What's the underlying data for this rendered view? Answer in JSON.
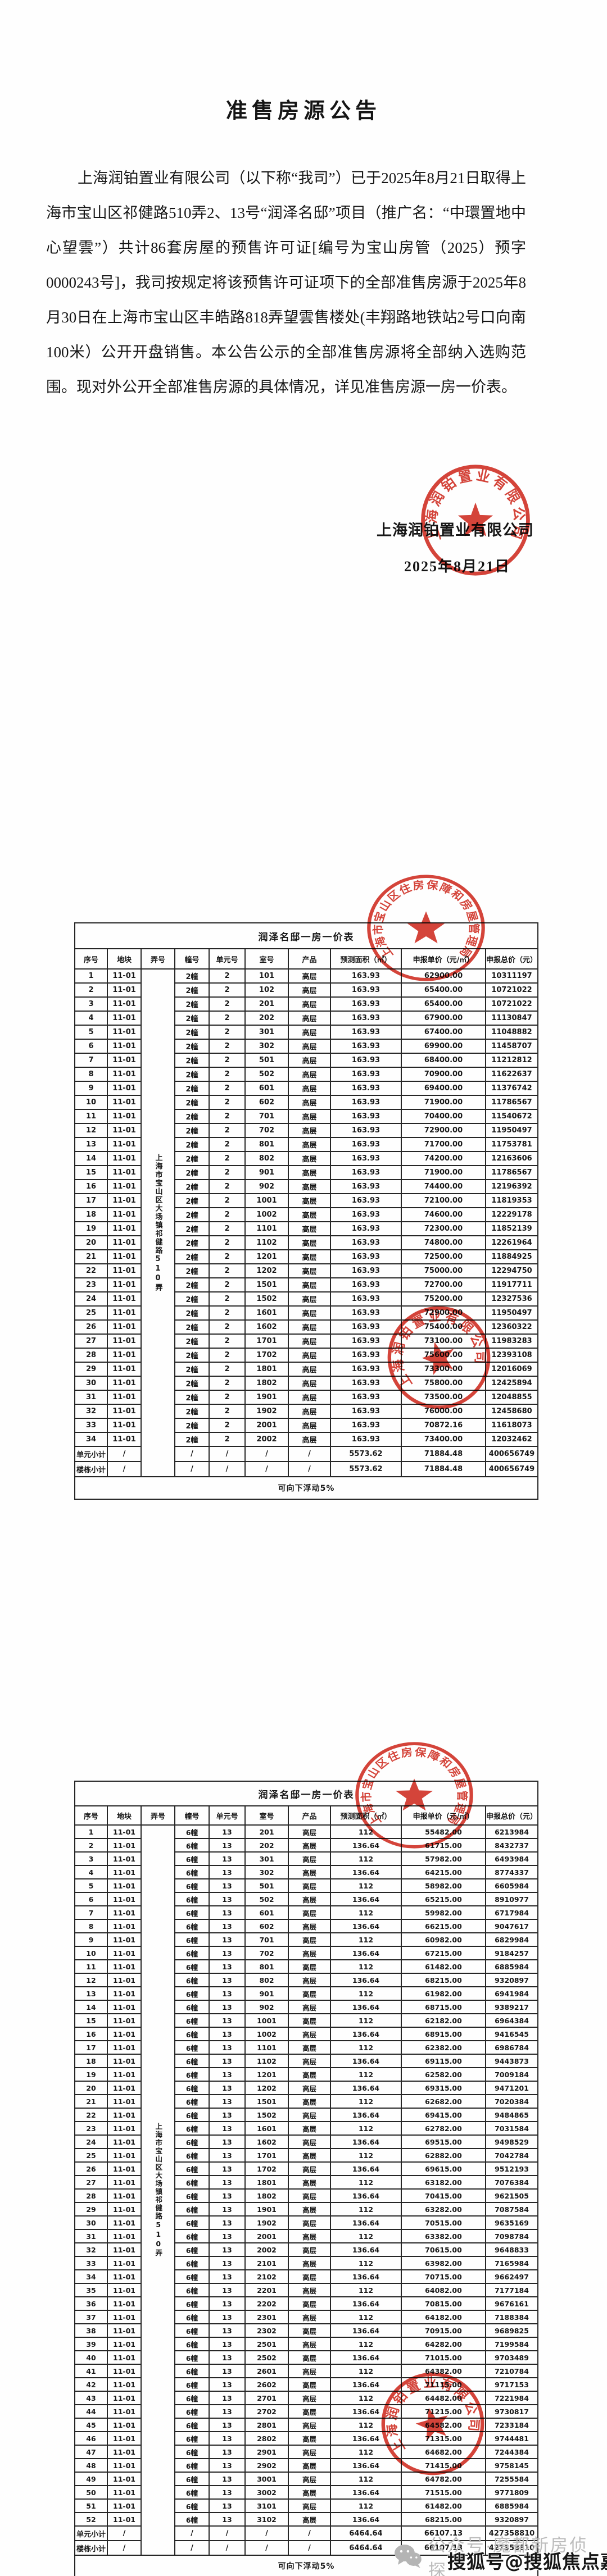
{
  "doc": {
    "title": "准售房源公告",
    "paragraph": "上海润铂置业有限公司（以下称“我司”）已于2025年8月21日取得上海市宝山区祁健路510弄2、13号“润泽名邸”项目（推广名：“中環置地中心望雲”）共计86套房屋的预售许可证[编号为宝山房管（2025）预字0000243号]，我司按规定将该预售许可证项下的全部准售房源于2025年8月30日在上海市宝山区丰皓路818弄望雲售楼处(丰翔路地铁站2号口向南100米）公开开盘销售。本公告公示的全部准售房源将全部纳入选购范围。现对外公开全部准售房源的具体情况，详见准售房源一房一价表。",
    "signature_company": "上海润铂置业有限公司",
    "signature_date": "2025年8月21日"
  },
  "stamps": {
    "company": "上海润铂置业有限公司",
    "authority": "上海市宝山区住房保障和房屋管理局"
  },
  "watermark": {
    "wechat": "公众号·魔都新房侦探",
    "sohu": "搜狐号@搜狐焦点嘉峪关站"
  },
  "table1": {
    "title": "润泽名邸一房一价表",
    "headers": [
      "序号",
      "地块",
      "弄号",
      "幢号",
      "单元号",
      "室号",
      "产品",
      "预测面积（㎡）",
      "申报单价（元/㎡）",
      "申报总价（元）"
    ],
    "lane_label": "上海市宝山区大场镇祁健路510弄",
    "rows": [
      [
        "1",
        "11-01",
        "2幢",
        "2",
        "101",
        "高层",
        "163.93",
        "62900.00",
        "10311197"
      ],
      [
        "2",
        "11-01",
        "2幢",
        "2",
        "102",
        "高层",
        "163.93",
        "65400.00",
        "10721022"
      ],
      [
        "3",
        "11-01",
        "2幢",
        "2",
        "201",
        "高层",
        "163.93",
        "65400.00",
        "10721022"
      ],
      [
        "4",
        "11-01",
        "2幢",
        "2",
        "202",
        "高层",
        "163.93",
        "67900.00",
        "11130847"
      ],
      [
        "5",
        "11-01",
        "2幢",
        "2",
        "301",
        "高层",
        "163.93",
        "67400.00",
        "11048882"
      ],
      [
        "6",
        "11-01",
        "2幢",
        "2",
        "302",
        "高层",
        "163.93",
        "69900.00",
        "11458707"
      ],
      [
        "7",
        "11-01",
        "2幢",
        "2",
        "501",
        "高层",
        "163.93",
        "68400.00",
        "11212812"
      ],
      [
        "8",
        "11-01",
        "2幢",
        "2",
        "502",
        "高层",
        "163.93",
        "70900.00",
        "11622637"
      ],
      [
        "9",
        "11-01",
        "2幢",
        "2",
        "601",
        "高层",
        "163.93",
        "69400.00",
        "11376742"
      ],
      [
        "10",
        "11-01",
        "2幢",
        "2",
        "602",
        "高层",
        "163.93",
        "71900.00",
        "11786567"
      ],
      [
        "11",
        "11-01",
        "2幢",
        "2",
        "701",
        "高层",
        "163.93",
        "70400.00",
        "11540672"
      ],
      [
        "12",
        "11-01",
        "2幢",
        "2",
        "702",
        "高层",
        "163.93",
        "72900.00",
        "11950497"
      ],
      [
        "13",
        "11-01",
        "2幢",
        "2",
        "801",
        "高层",
        "163.93",
        "71700.00",
        "11753781"
      ],
      [
        "14",
        "11-01",
        "2幢",
        "2",
        "802",
        "高层",
        "163.93",
        "74200.00",
        "12163606"
      ],
      [
        "15",
        "11-01",
        "2幢",
        "2",
        "901",
        "高层",
        "163.93",
        "71900.00",
        "11786567"
      ],
      [
        "16",
        "11-01",
        "2幢",
        "2",
        "902",
        "高层",
        "163.93",
        "74400.00",
        "12196392"
      ],
      [
        "17",
        "11-01",
        "2幢",
        "2",
        "1001",
        "高层",
        "163.93",
        "72100.00",
        "11819353"
      ],
      [
        "18",
        "11-01",
        "2幢",
        "2",
        "1002",
        "高层",
        "163.93",
        "74600.00",
        "12229178"
      ],
      [
        "19",
        "11-01",
        "2幢",
        "2",
        "1101",
        "高层",
        "163.93",
        "72300.00",
        "11852139"
      ],
      [
        "20",
        "11-01",
        "2幢",
        "2",
        "1102",
        "高层",
        "163.93",
        "74800.00",
        "12261964"
      ],
      [
        "21",
        "11-01",
        "2幢",
        "2",
        "1201",
        "高层",
        "163.93",
        "72500.00",
        "11884925"
      ],
      [
        "22",
        "11-01",
        "2幢",
        "2",
        "1202",
        "高层",
        "163.93",
        "75000.00",
        "12294750"
      ],
      [
        "23",
        "11-01",
        "2幢",
        "2",
        "1501",
        "高层",
        "163.93",
        "72700.00",
        "11917711"
      ],
      [
        "24",
        "11-01",
        "2幢",
        "2",
        "1502",
        "高层",
        "163.93",
        "75200.00",
        "12327536"
      ],
      [
        "25",
        "11-01",
        "2幢",
        "2",
        "1601",
        "高层",
        "163.93",
        "72900.00",
        "11950497"
      ],
      [
        "26",
        "11-01",
        "2幢",
        "2",
        "1602",
        "高层",
        "163.93",
        "75400.00",
        "12360322"
      ],
      [
        "27",
        "11-01",
        "2幢",
        "2",
        "1701",
        "高层",
        "163.93",
        "73100.00",
        "11983283"
      ],
      [
        "28",
        "11-01",
        "2幢",
        "2",
        "1702",
        "高层",
        "163.93",
        "75600.00",
        "12393108"
      ],
      [
        "29",
        "11-01",
        "2幢",
        "2",
        "1801",
        "高层",
        "163.93",
        "73300.00",
        "12016069"
      ],
      [
        "30",
        "11-01",
        "2幢",
        "2",
        "1802",
        "高层",
        "163.93",
        "75800.00",
        "12425894"
      ],
      [
        "31",
        "11-01",
        "2幢",
        "2",
        "1901",
        "高层",
        "163.93",
        "73500.00",
        "12048855"
      ],
      [
        "32",
        "11-01",
        "2幢",
        "2",
        "1902",
        "高层",
        "163.93",
        "76000.00",
        "12458680"
      ],
      [
        "33",
        "11-01",
        "2幢",
        "2",
        "2001",
        "高层",
        "163.93",
        "70872.16",
        "11618073"
      ],
      [
        "34",
        "11-01",
        "2幢",
        "2",
        "2002",
        "高层",
        "163.93",
        "73400.00",
        "12032462"
      ]
    ],
    "subtotals": [
      {
        "label": "单元小计",
        "cells": [
          "/",
          "/",
          "/",
          "/",
          "/",
          "5573.62",
          "71884.48",
          "400656749"
        ]
      },
      {
        "label": "楼栋小计",
        "cells": [
          "/",
          "/",
          "/",
          "/",
          "/",
          "5573.62",
          "71884.48",
          "400656749"
        ]
      }
    ],
    "footer": "可向下浮动5%"
  },
  "table2": {
    "title": "润泽名邸一房一价表",
    "headers": [
      "序号",
      "地块",
      "弄号",
      "幢号",
      "单元号",
      "室号",
      "产品",
      "预测面积（㎡）",
      "申报单价（元/㎡）",
      "申报总价（元）"
    ],
    "lane_label": "上海市宝山区大场镇祁健路510弄",
    "rows": [
      [
        "1",
        "11-01",
        "6幢",
        "13",
        "201",
        "高层",
        "112",
        "55482.00",
        "6213984"
      ],
      [
        "2",
        "11-01",
        "6幢",
        "13",
        "202",
        "高层",
        "136.64",
        "61715.00",
        "8432737"
      ],
      [
        "3",
        "11-01",
        "6幢",
        "13",
        "301",
        "高层",
        "112",
        "57982.00",
        "6493984"
      ],
      [
        "4",
        "11-01",
        "6幢",
        "13",
        "302",
        "高层",
        "136.64",
        "64215.00",
        "8774337"
      ],
      [
        "5",
        "11-01",
        "6幢",
        "13",
        "501",
        "高层",
        "112",
        "58982.00",
        "6605984"
      ],
      [
        "6",
        "11-01",
        "6幢",
        "13",
        "502",
        "高层",
        "136.64",
        "65215.00",
        "8910977"
      ],
      [
        "7",
        "11-01",
        "6幢",
        "13",
        "601",
        "高层",
        "112",
        "59982.00",
        "6717984"
      ],
      [
        "8",
        "11-01",
        "6幢",
        "13",
        "602",
        "高层",
        "136.64",
        "66215.00",
        "9047617"
      ],
      [
        "9",
        "11-01",
        "6幢",
        "13",
        "701",
        "高层",
        "112",
        "60982.00",
        "6829984"
      ],
      [
        "10",
        "11-01",
        "6幢",
        "13",
        "702",
        "高层",
        "136.64",
        "67215.00",
        "9184257"
      ],
      [
        "11",
        "11-01",
        "6幢",
        "13",
        "801",
        "高层",
        "112",
        "61482.00",
        "6885984"
      ],
      [
        "12",
        "11-01",
        "6幢",
        "13",
        "802",
        "高层",
        "136.64",
        "68215.00",
        "9320897"
      ],
      [
        "13",
        "11-01",
        "6幢",
        "13",
        "901",
        "高层",
        "112",
        "61982.00",
        "6941984"
      ],
      [
        "14",
        "11-01",
        "6幢",
        "13",
        "902",
        "高层",
        "136.64",
        "68715.00",
        "9389217"
      ],
      [
        "15",
        "11-01",
        "6幢",
        "13",
        "1001",
        "高层",
        "112",
        "62182.00",
        "6964384"
      ],
      [
        "16",
        "11-01",
        "6幢",
        "13",
        "1002",
        "高层",
        "136.64",
        "68915.00",
        "9416545"
      ],
      [
        "17",
        "11-01",
        "6幢",
        "13",
        "1101",
        "高层",
        "112",
        "62382.00",
        "6986784"
      ],
      [
        "18",
        "11-01",
        "6幢",
        "13",
        "1102",
        "高层",
        "136.64",
        "69115.00",
        "9443873"
      ],
      [
        "19",
        "11-01",
        "6幢",
        "13",
        "1201",
        "高层",
        "112",
        "62582.00",
        "7009184"
      ],
      [
        "20",
        "11-01",
        "6幢",
        "13",
        "1202",
        "高层",
        "136.64",
        "69315.00",
        "9471201"
      ],
      [
        "21",
        "11-01",
        "6幢",
        "13",
        "1501",
        "高层",
        "112",
        "62682.00",
        "7020384"
      ],
      [
        "22",
        "11-01",
        "6幢",
        "13",
        "1502",
        "高层",
        "136.64",
        "69415.00",
        "9484865"
      ],
      [
        "23",
        "11-01",
        "6幢",
        "13",
        "1601",
        "高层",
        "112",
        "62782.00",
        "7031584"
      ],
      [
        "24",
        "11-01",
        "6幢",
        "13",
        "1602",
        "高层",
        "136.64",
        "69515.00",
        "9498529"
      ],
      [
        "25",
        "11-01",
        "6幢",
        "13",
        "1701",
        "高层",
        "112",
        "62882.00",
        "7042784"
      ],
      [
        "26",
        "11-01",
        "6幢",
        "13",
        "1702",
        "高层",
        "136.64",
        "69615.00",
        "9512193"
      ],
      [
        "27",
        "11-01",
        "6幢",
        "13",
        "1801",
        "高层",
        "112",
        "63182.00",
        "7076384"
      ],
      [
        "28",
        "11-01",
        "6幢",
        "13",
        "1802",
        "高层",
        "136.64",
        "70415.00",
        "9621505"
      ],
      [
        "29",
        "11-01",
        "6幢",
        "13",
        "1901",
        "高层",
        "112",
        "63282.00",
        "7087584"
      ],
      [
        "30",
        "11-01",
        "6幢",
        "13",
        "1902",
        "高层",
        "136.64",
        "70515.00",
        "9635169"
      ],
      [
        "31",
        "11-01",
        "6幢",
        "13",
        "2001",
        "高层",
        "112",
        "63382.00",
        "7098784"
      ],
      [
        "32",
        "11-01",
        "6幢",
        "13",
        "2002",
        "高层",
        "136.64",
        "70615.00",
        "9648833"
      ],
      [
        "33",
        "11-01",
        "6幢",
        "13",
        "2101",
        "高层",
        "112",
        "63982.00",
        "7165984"
      ],
      [
        "34",
        "11-01",
        "6幢",
        "13",
        "2102",
        "高层",
        "136.64",
        "70715.00",
        "9662497"
      ],
      [
        "35",
        "11-01",
        "6幢",
        "13",
        "2201",
        "高层",
        "112",
        "64082.00",
        "7177184"
      ],
      [
        "36",
        "11-01",
        "6幢",
        "13",
        "2202",
        "高层",
        "136.64",
        "70815.00",
        "9676161"
      ],
      [
        "37",
        "11-01",
        "6幢",
        "13",
        "2301",
        "高层",
        "112",
        "64182.00",
        "7188384"
      ],
      [
        "38",
        "11-01",
        "6幢",
        "13",
        "2302",
        "高层",
        "136.64",
        "70915.00",
        "9689825"
      ],
      [
        "39",
        "11-01",
        "6幢",
        "13",
        "2501",
        "高层",
        "112",
        "64282.00",
        "7199584"
      ],
      [
        "40",
        "11-01",
        "6幢",
        "13",
        "2502",
        "高层",
        "136.64",
        "71015.00",
        "9703489"
      ],
      [
        "41",
        "11-01",
        "6幢",
        "13",
        "2601",
        "高层",
        "112",
        "64382.00",
        "7210784"
      ],
      [
        "42",
        "11-01",
        "6幢",
        "13",
        "2602",
        "高层",
        "136.64",
        "71115.00",
        "9717153"
      ],
      [
        "43",
        "11-01",
        "6幢",
        "13",
        "2701",
        "高层",
        "112",
        "64482.00",
        "7221984"
      ],
      [
        "44",
        "11-01",
        "6幢",
        "13",
        "2702",
        "高层",
        "136.64",
        "71215.00",
        "9730817"
      ],
      [
        "45",
        "11-01",
        "6幢",
        "13",
        "2801",
        "高层",
        "112",
        "64582.00",
        "7233184"
      ],
      [
        "46",
        "11-01",
        "6幢",
        "13",
        "2802",
        "高层",
        "136.64",
        "71315.00",
        "9744481"
      ],
      [
        "47",
        "11-01",
        "6幢",
        "13",
        "2901",
        "高层",
        "112",
        "64682.00",
        "7244384"
      ],
      [
        "48",
        "11-01",
        "6幢",
        "13",
        "2902",
        "高层",
        "136.64",
        "71415.00",
        "9758145"
      ],
      [
        "49",
        "11-01",
        "6幢",
        "13",
        "3001",
        "高层",
        "112",
        "64782.00",
        "7255584"
      ],
      [
        "50",
        "11-01",
        "6幢",
        "13",
        "3002",
        "高层",
        "136.64",
        "71515.00",
        "9771809"
      ],
      [
        "51",
        "11-01",
        "6幢",
        "13",
        "3101",
        "高层",
        "112",
        "61482.00",
        "6885984"
      ],
      [
        "52",
        "11-01",
        "6幢",
        "13",
        "3102",
        "高层",
        "136.64",
        "68215.00",
        "9320897"
      ]
    ],
    "subtotals": [
      {
        "label": "单元小计",
        "cells": [
          "/",
          "/",
          "/",
          "/",
          "/",
          "6464.64",
          "66107.13",
          "427358810"
        ]
      },
      {
        "label": "楼栋小计",
        "cells": [
          "/",
          "/",
          "/",
          "/",
          "/",
          "6464.64",
          "66107.13",
          "427358810"
        ]
      }
    ],
    "footer": "可向下浮动5%"
  }
}
